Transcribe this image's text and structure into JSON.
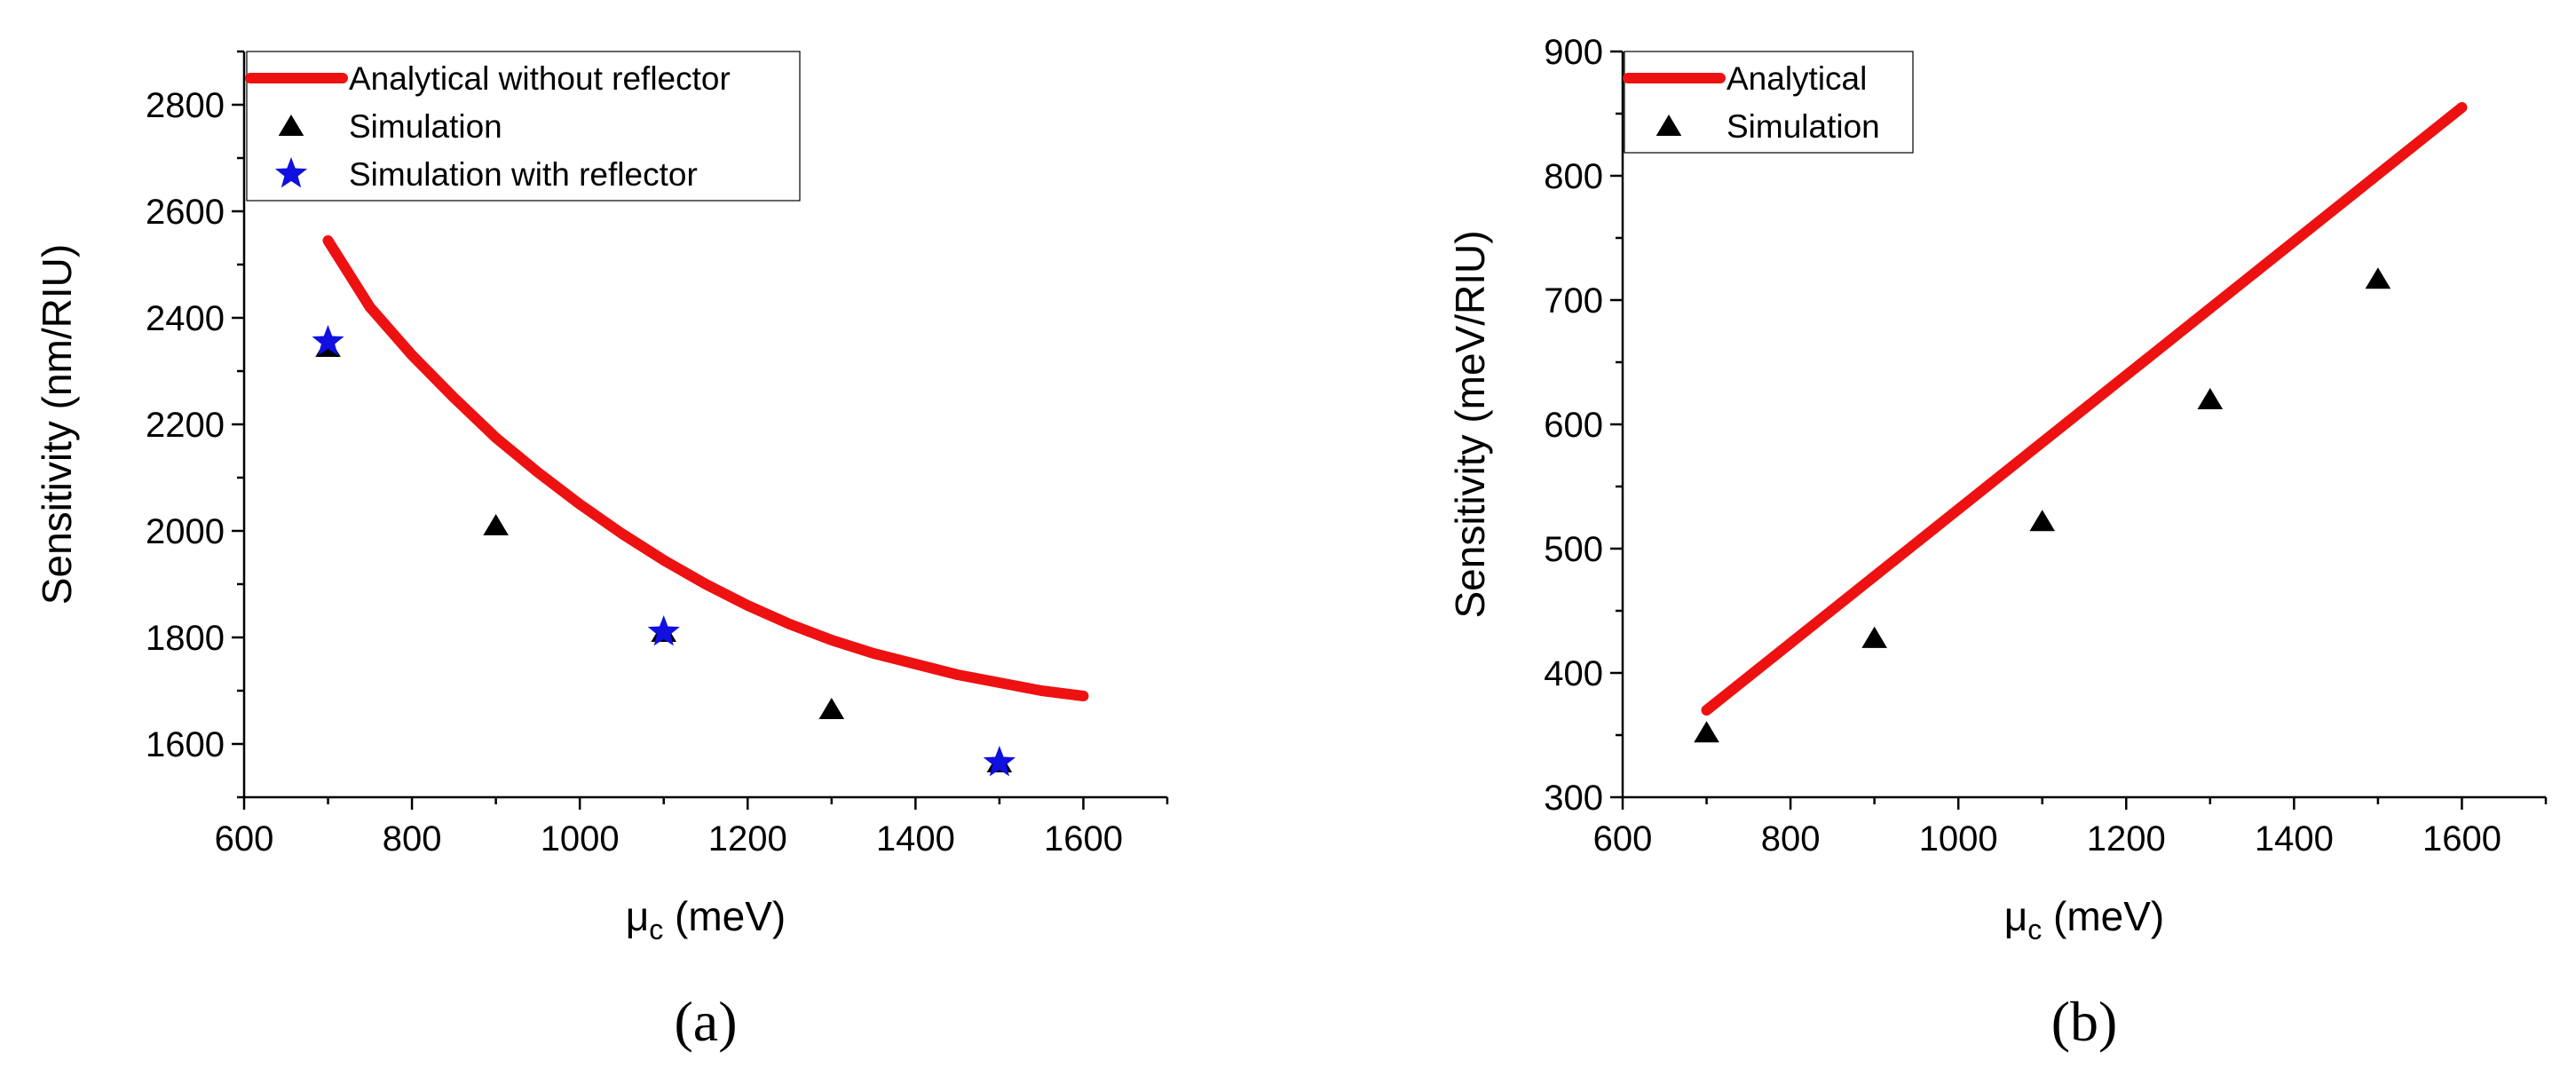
{
  "chart_data": [
    {
      "type": "line",
      "panel_label": "(a)",
      "xlabel": "μc (meV)",
      "ylabel": "Sensitivity (nm/RIU)",
      "xlim": [
        600,
        1700
      ],
      "ylim": [
        1500,
        2900
      ],
      "xticks": [
        600,
        800,
        1000,
        1200,
        1400,
        1600
      ],
      "yticks": [
        1600,
        1800,
        2000,
        2200,
        2400,
        2600,
        2800
      ],
      "grid": false,
      "legend_position": "top-right",
      "series": [
        {
          "name": "Analytical without reflector",
          "kind": "line",
          "color": "#ee1111",
          "x": [
            700,
            750,
            800,
            850,
            900,
            950,
            1000,
            1050,
            1100,
            1150,
            1200,
            1250,
            1300,
            1350,
            1400,
            1450,
            1500,
            1550,
            1600
          ],
          "values": [
            2545,
            2420,
            2330,
            2250,
            2175,
            2110,
            2050,
            1995,
            1945,
            1900,
            1860,
            1825,
            1795,
            1770,
            1750,
            1730,
            1715,
            1700,
            1690
          ]
        },
        {
          "name": "Simulation",
          "kind": "marker",
          "marker": "triangle",
          "color": "#000000",
          "x": [
            700,
            900,
            1100,
            1300,
            1500
          ],
          "values": [
            2345,
            2010,
            1810,
            1665,
            1565
          ]
        },
        {
          "name": "Simulation with reflector",
          "kind": "marker",
          "marker": "star",
          "color": "#1010e0",
          "x": [
            700,
            1100,
            1500
          ],
          "values": [
            2355,
            1810,
            1565
          ]
        }
      ]
    },
    {
      "type": "line",
      "panel_label": "(b)",
      "xlabel": "μc (meV)",
      "ylabel": "Sensitivity (meV/RIU)",
      "xlim": [
        600,
        1700
      ],
      "ylim": [
        300,
        900
      ],
      "xticks": [
        600,
        800,
        1000,
        1200,
        1400,
        1600
      ],
      "yticks": [
        300,
        400,
        500,
        600,
        700,
        800,
        900
      ],
      "grid": false,
      "legend_position": "top-left",
      "series": [
        {
          "name": "Analytical",
          "kind": "line",
          "color": "#ee1111",
          "x": [
            700,
            1600
          ],
          "values": [
            370,
            855
          ]
        },
        {
          "name": "Simulation",
          "kind": "marker",
          "marker": "triangle",
          "color": "#000000",
          "x": [
            700,
            900,
            1100,
            1300,
            1500
          ],
          "values": [
            352,
            428,
            522,
            620,
            717
          ]
        }
      ]
    }
  ]
}
